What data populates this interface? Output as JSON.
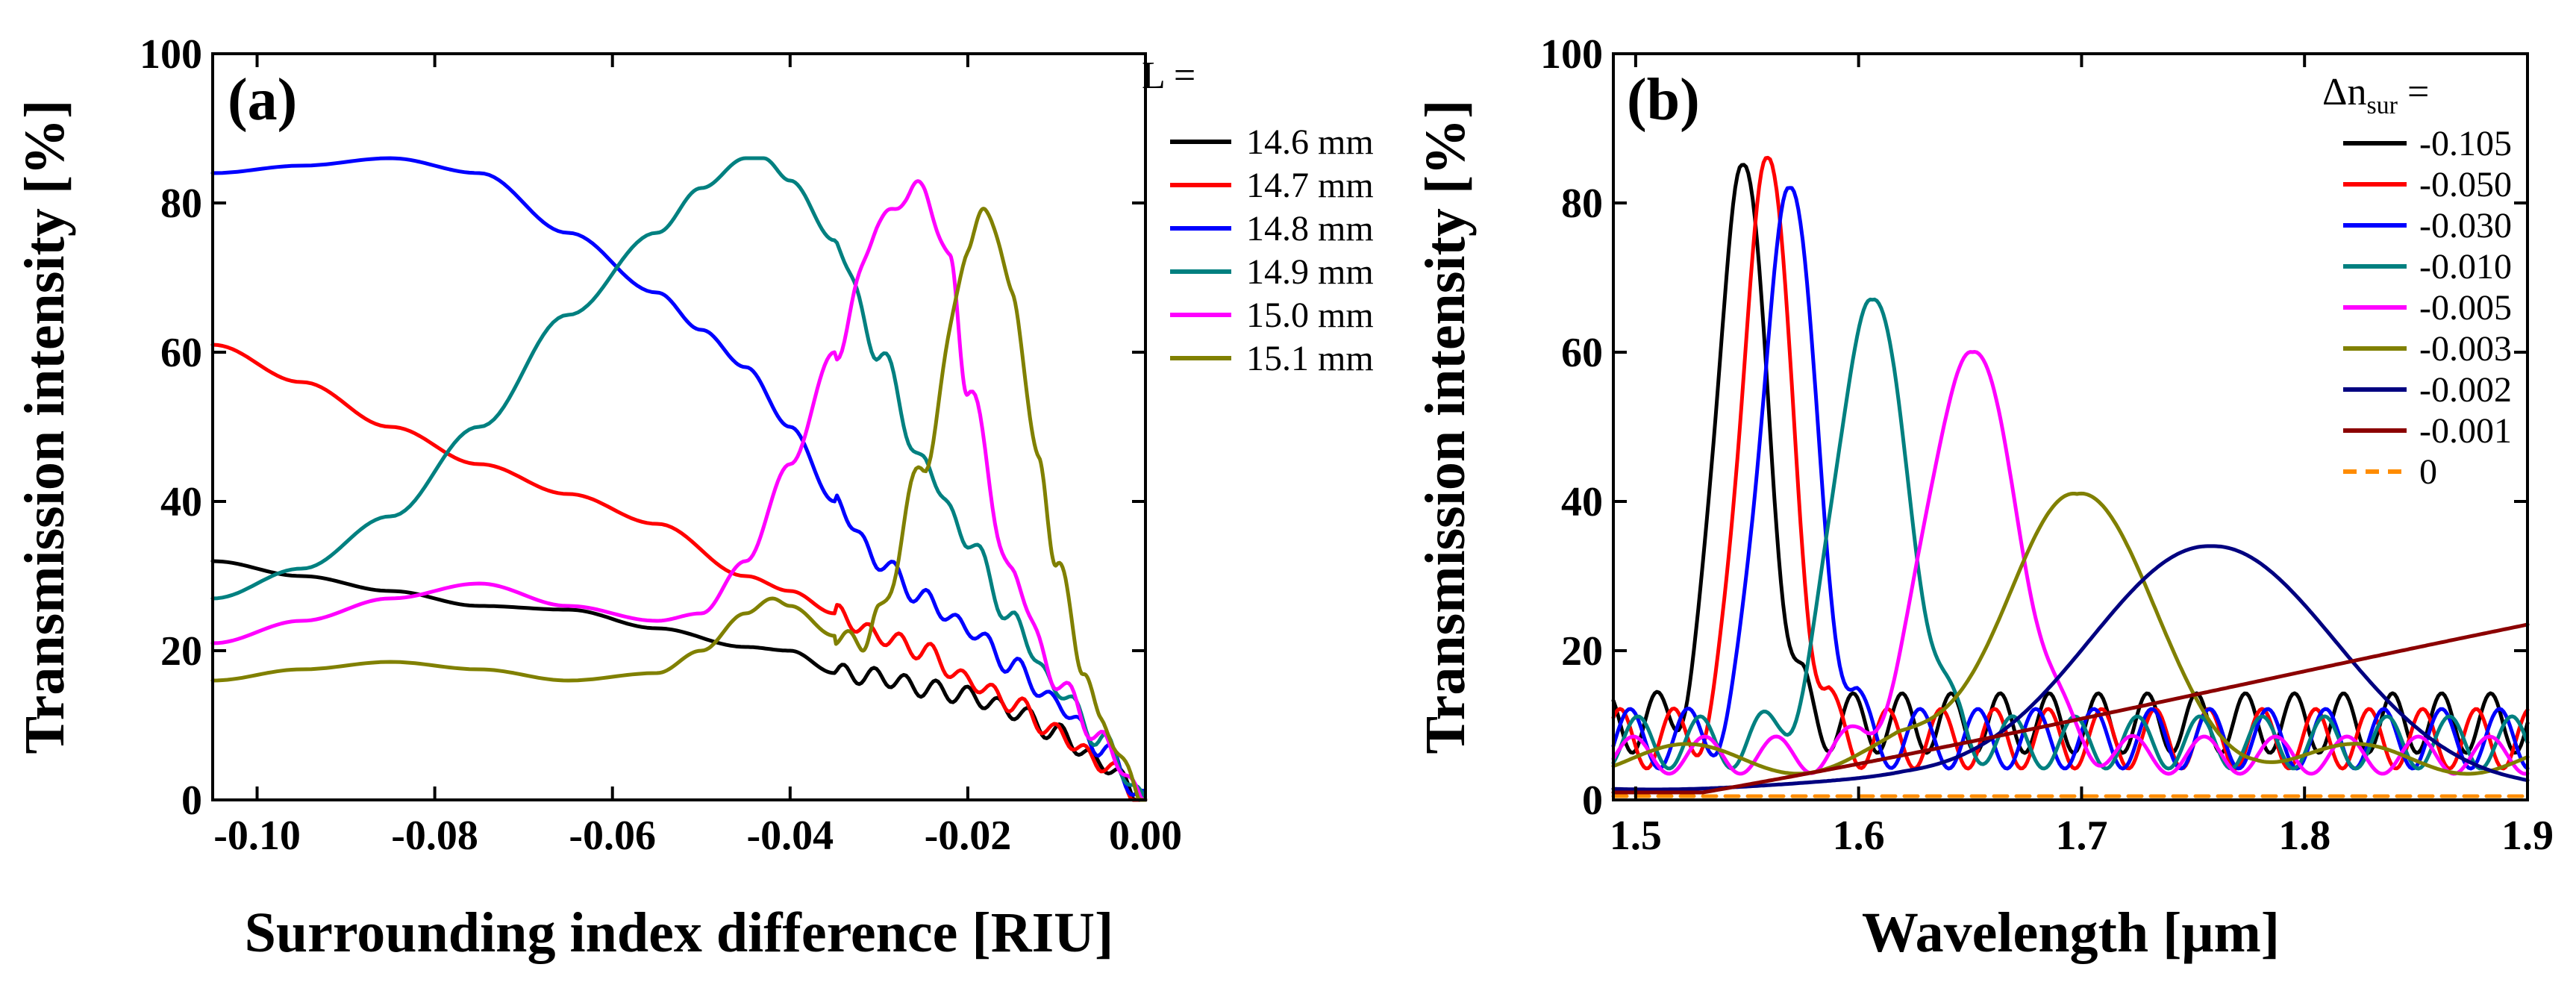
{
  "chart_data": [
    {
      "type": "line",
      "panel_label": "(a)",
      "xlabel": "Surrounding index difference [RIU]",
      "ylabel": "Transmission intensity [%]",
      "xlim": [
        -0.105,
        0.0
      ],
      "ylim": [
        0,
        100
      ],
      "xticks": [
        -0.1,
        -0.08,
        -0.06,
        -0.04,
        -0.02,
        0.0
      ],
      "xtick_labels": [
        "-0.10",
        "-0.08",
        "-0.06",
        "-0.04",
        "-0.02",
        "0.00"
      ],
      "yticks": [
        0,
        20,
        40,
        60,
        80,
        100
      ],
      "ytick_labels": [
        "0",
        "20",
        "40",
        "60",
        "80",
        "100"
      ],
      "legend_title": "L =",
      "legend_position": "right-outside",
      "series": [
        {
          "name": "14.6 mm",
          "color": "#000000",
          "x": [
            -0.105,
            -0.095,
            -0.085,
            -0.075,
            -0.065,
            -0.055,
            -0.045,
            -0.04,
            -0.035,
            -0.03,
            -0.025,
            -0.02,
            -0.015,
            -0.01,
            -0.005,
            0.0
          ],
          "y": [
            32,
            30,
            28,
            26,
            25.5,
            23,
            20.5,
            20,
            17,
            16.5,
            15,
            14,
            12,
            9,
            5,
            0
          ]
        },
        {
          "name": "14.7 mm",
          "color": "#ff0000",
          "x": [
            -0.105,
            -0.095,
            -0.085,
            -0.075,
            -0.065,
            -0.055,
            -0.045,
            -0.04,
            -0.035,
            -0.03,
            -0.025,
            -0.02,
            -0.015,
            -0.01,
            -0.005,
            0.0
          ],
          "y": [
            61,
            56,
            50,
            45,
            41,
            37,
            30,
            28,
            25,
            22,
            20,
            16,
            13,
            9,
            5,
            0
          ]
        },
        {
          "name": "14.8 mm",
          "color": "#0000ff",
          "x": [
            -0.105,
            -0.095,
            -0.085,
            -0.075,
            -0.065,
            -0.055,
            -0.05,
            -0.045,
            -0.04,
            -0.035,
            -0.03,
            -0.025,
            -0.02,
            -0.015,
            -0.01,
            -0.005,
            0.0
          ],
          "y": [
            84,
            85,
            86,
            84,
            76,
            68,
            63,
            58,
            50,
            40,
            32,
            27,
            23,
            18,
            13,
            7,
            0
          ]
        },
        {
          "name": "14.9 mm",
          "color": "#008080",
          "x": [
            -0.105,
            -0.095,
            -0.085,
            -0.075,
            -0.065,
            -0.055,
            -0.05,
            -0.045,
            -0.043,
            -0.04,
            -0.035,
            -0.03,
            -0.025,
            -0.02,
            -0.015,
            -0.01,
            -0.005,
            0.0
          ],
          "y": [
            27,
            31,
            38,
            50,
            65,
            76,
            82,
            86,
            86,
            83,
            75,
            60,
            45,
            35,
            24,
            15,
            8,
            0
          ]
        },
        {
          "name": "15.0 mm",
          "color": "#ff00ff",
          "x": [
            -0.105,
            -0.095,
            -0.085,
            -0.075,
            -0.065,
            -0.055,
            -0.05,
            -0.045,
            -0.04,
            -0.035,
            -0.03,
            -0.027,
            -0.025,
            -0.022,
            -0.02,
            -0.015,
            -0.01,
            -0.005,
            0.0
          ],
          "y": [
            21,
            24,
            27,
            29,
            26,
            24,
            25,
            32,
            45,
            60,
            77,
            81,
            82,
            72,
            55,
            30,
            16,
            8,
            0
          ]
        },
        {
          "name": "15.1 mm",
          "color": "#808000",
          "x": [
            -0.105,
            -0.095,
            -0.085,
            -0.075,
            -0.065,
            -0.055,
            -0.05,
            -0.045,
            -0.042,
            -0.04,
            -0.035,
            -0.032,
            -0.03,
            -0.025,
            -0.02,
            -0.018,
            -0.015,
            -0.012,
            -0.01,
            -0.007,
            -0.005,
            0.0
          ],
          "y": [
            16,
            17.5,
            18.5,
            17.5,
            16,
            17,
            20,
            25,
            27,
            26,
            22,
            21,
            25,
            45,
            73,
            80,
            68,
            45,
            32,
            18,
            10,
            0
          ]
        }
      ]
    },
    {
      "type": "line",
      "panel_label": "(b)",
      "xlabel": "Wavelength [μm]",
      "ylabel": "Transmission intensity [%]",
      "xlim": [
        1.49,
        1.9
      ],
      "ylim": [
        0,
        100
      ],
      "xticks": [
        1.5,
        1.6,
        1.7,
        1.8,
        1.9
      ],
      "xtick_labels": [
        "1.5",
        "1.6",
        "1.7",
        "1.8",
        "1.9"
      ],
      "yticks": [
        0,
        20,
        40,
        60,
        80,
        100
      ],
      "ytick_labels": [
        "0",
        "20",
        "40",
        "60",
        "80",
        "100"
      ],
      "legend_title": "Δn",
      "legend_title_sub": "sur",
      "legend_title_suffix": " =",
      "legend_position": "top-right",
      "series": [
        {
          "name": "-0.105",
          "color": "#000000",
          "dash": false,
          "peak": 1.548,
          "amp": 85,
          "width": 0.011,
          "base": 9,
          "ripple": 8,
          "period": 0.022
        },
        {
          "name": "-0.050",
          "color": "#ff0000",
          "dash": false,
          "peak": 1.559,
          "amp": 86,
          "width": 0.011,
          "base": 6,
          "ripple": 8,
          "period": 0.024
        },
        {
          "name": "-0.030",
          "color": "#0000ff",
          "dash": false,
          "peak": 1.569,
          "amp": 82,
          "width": 0.012,
          "base": 6,
          "ripple": 8,
          "period": 0.026
        },
        {
          "name": "-0.010",
          "color": "#008080",
          "dash": false,
          "peak": 1.606,
          "amp": 67,
          "width": 0.016,
          "base": 6,
          "ripple": 7,
          "period": 0.028
        },
        {
          "name": "-0.005",
          "color": "#ff00ff",
          "dash": false,
          "peak": 1.651,
          "amp": 60,
          "width": 0.02,
          "base": 5,
          "ripple": 5,
          "period": 0.032
        },
        {
          "name": "-0.003",
          "color": "#808000",
          "dash": false,
          "peak": 1.698,
          "amp": 41,
          "width": 0.032,
          "base": 5,
          "ripple": 4,
          "period": 0.1
        },
        {
          "name": "-0.002",
          "color": "#000080",
          "dash": false,
          "peak": 1.758,
          "amp": 34,
          "width": 0.055,
          "base": 2,
          "ripple": 1,
          "period": 0.2
        },
        {
          "name": "-0.001",
          "color": "#8b0000",
          "dash": false,
          "peak": 1.9,
          "amp": 22.5,
          "width": 0.17,
          "base": 0,
          "ripple": 0,
          "period": 1
        },
        {
          "name": "0",
          "color": "#ff8c00",
          "dash": true,
          "peak": 1.7,
          "amp": 0,
          "width": 1,
          "base": 0.5,
          "ripple": 0,
          "period": 1
        }
      ]
    }
  ]
}
